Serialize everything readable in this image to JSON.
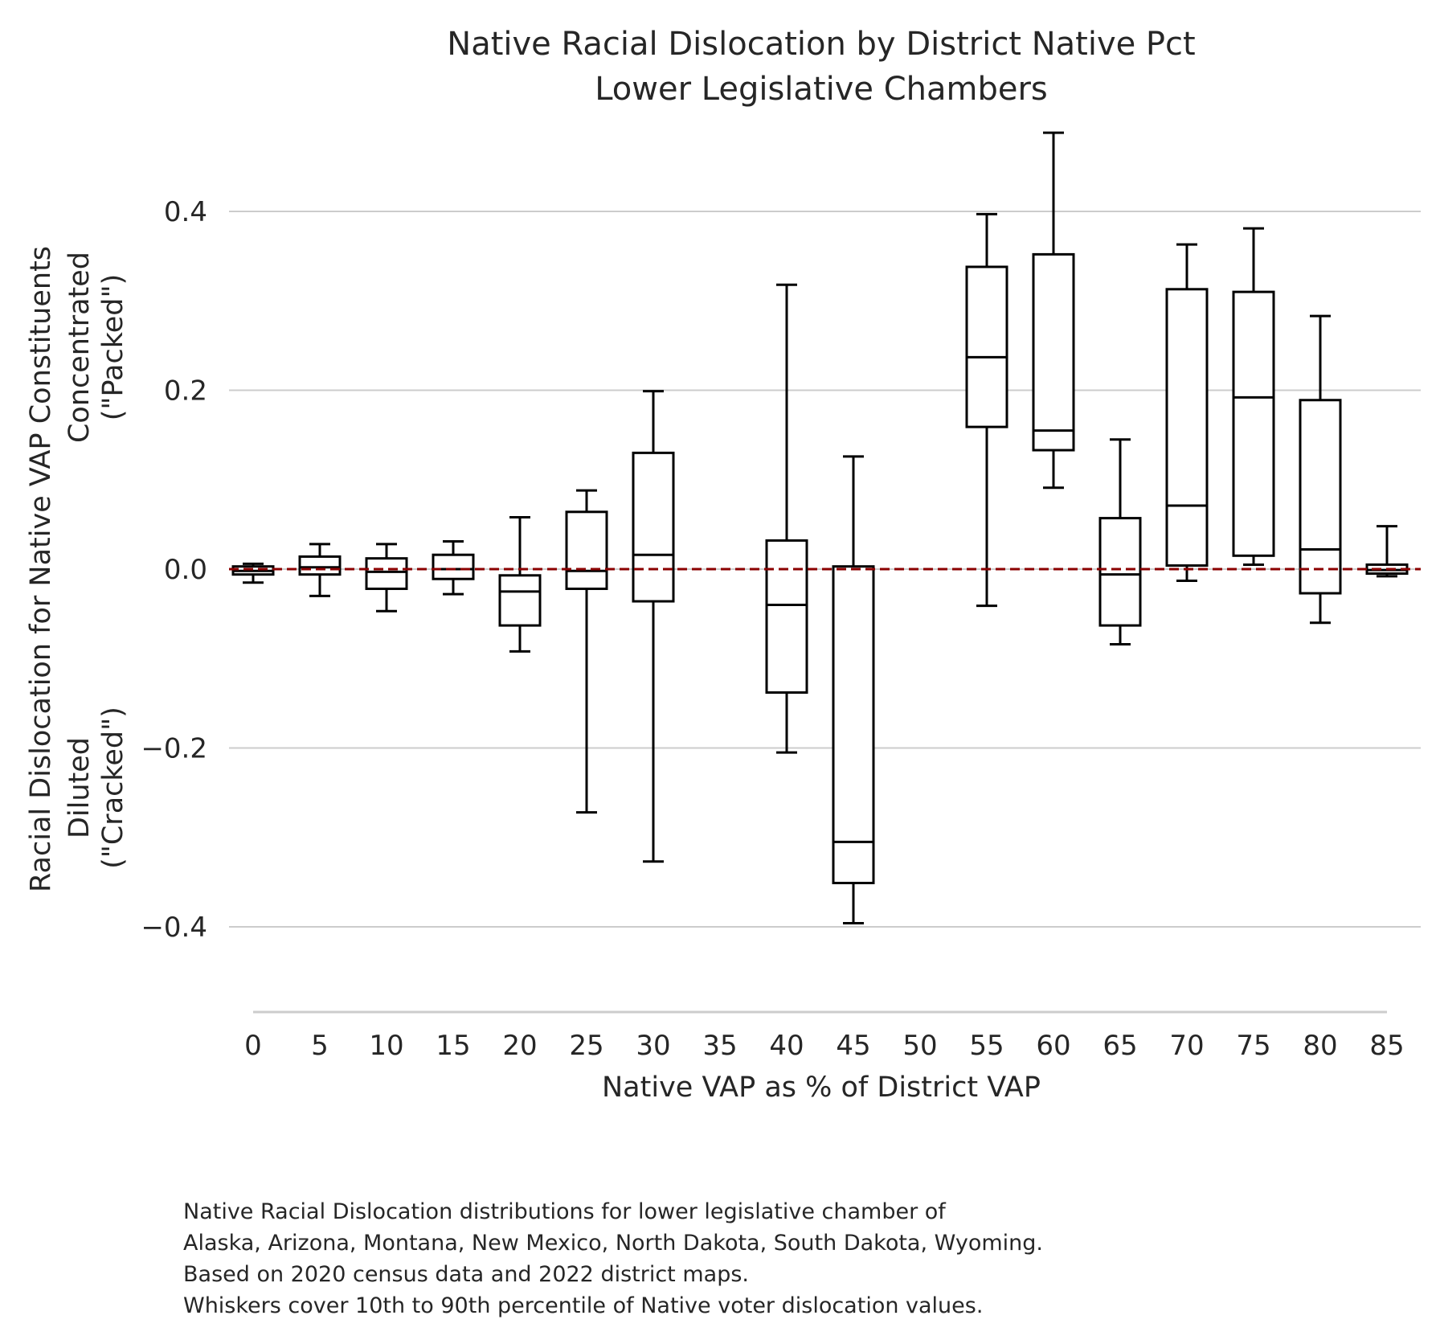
{
  "chart_data": {
    "type": "box",
    "title_lines": [
      "Native Racial Dislocation by District Native Pct",
      "Lower Legislative Chambers"
    ],
    "xlabel": "Native VAP as % of District VAP",
    "ylabel_lines": [
      "Racial Dislocation for Native VAP Constituents",
      "Diluted",
      "(\"Cracked\")",
      "Concentrated",
      "(\"Packed\")"
    ],
    "x_ticks": [
      "0",
      "5",
      "10",
      "15",
      "20",
      "25",
      "30",
      "35",
      "40",
      "45",
      "50",
      "55",
      "60",
      "65",
      "70",
      "75",
      "80",
      "85"
    ],
    "y_ticks": [
      0.4,
      0.2,
      0.0,
      -0.2,
      -0.4
    ],
    "y_tick_labels": [
      "0.4",
      "0.2",
      "0.0",
      "−0.2",
      "−0.4"
    ],
    "ylim": [
      -0.5,
      0.5
    ],
    "reference_line": {
      "y": 0.0,
      "style": "dashed",
      "color": "#8b0000"
    },
    "grid": "horizontal",
    "boxes": [
      {
        "x": "0",
        "whislo": -0.015,
        "q1": -0.006,
        "med": -0.002,
        "q3": 0.003,
        "whishi": 0.006
      },
      {
        "x": "5",
        "whislo": -0.03,
        "q1": -0.006,
        "med": 0.002,
        "q3": 0.014,
        "whishi": 0.028
      },
      {
        "x": "10",
        "whislo": -0.047,
        "q1": -0.022,
        "med": -0.003,
        "q3": 0.012,
        "whishi": 0.028
      },
      {
        "x": "15",
        "whislo": -0.028,
        "q1": -0.011,
        "med": 0.0,
        "q3": 0.016,
        "whishi": 0.031
      },
      {
        "x": "20",
        "whislo": -0.092,
        "q1": -0.063,
        "med": -0.025,
        "q3": -0.007,
        "whishi": 0.058
      },
      {
        "x": "25",
        "whislo": -0.272,
        "q1": -0.022,
        "med": -0.002,
        "q3": 0.064,
        "whishi": 0.088
      },
      {
        "x": "30",
        "whislo": -0.327,
        "q1": -0.036,
        "med": 0.016,
        "q3": 0.13,
        "whishi": 0.199
      },
      {
        "x": "40",
        "whislo": -0.205,
        "q1": -0.138,
        "med": -0.04,
        "q3": 0.032,
        "whishi": 0.318
      },
      {
        "x": "45",
        "whislo": -0.396,
        "q1": -0.351,
        "med": -0.305,
        "q3": 0.003,
        "whishi": 0.126
      },
      {
        "x": "55",
        "whislo": -0.041,
        "q1": 0.159,
        "med": 0.237,
        "q3": 0.338,
        "whishi": 0.397
      },
      {
        "x": "60",
        "whislo": 0.091,
        "q1": 0.133,
        "med": 0.155,
        "q3": 0.352,
        "whishi": 0.488
      },
      {
        "x": "65",
        "whislo": -0.084,
        "q1": -0.063,
        "med": -0.006,
        "q3": 0.057,
        "whishi": 0.145
      },
      {
        "x": "70",
        "whislo": -0.013,
        "q1": 0.004,
        "med": 0.071,
        "q3": 0.313,
        "whishi": 0.363
      },
      {
        "x": "75",
        "whislo": 0.005,
        "q1": 0.015,
        "med": 0.192,
        "q3": 0.31,
        "whishi": 0.381
      },
      {
        "x": "80",
        "whislo": -0.06,
        "q1": -0.027,
        "med": 0.022,
        "q3": 0.189,
        "whishi": 0.283
      },
      {
        "x": "85",
        "whislo": -0.008,
        "q1": -0.005,
        "med": -0.001,
        "q3": 0.005,
        "whishi": 0.048
      }
    ],
    "whisker_note": "10th to 90th percentile"
  },
  "caption": {
    "lines": [
      "Native Racial Dislocation distributions for lower legislative chamber of",
      "Alaska, Arizona, Montana, New Mexico, North Dakota, South Dakota, Wyoming.",
      "Based on 2020 census data and 2022 district maps.",
      "Whiskers cover 10th to 90th percentile of Native voter dislocation values."
    ]
  },
  "colors": {
    "box": "#000000",
    "grid": "#cccccc",
    "reference": "#8b0000",
    "text": "#262626"
  }
}
